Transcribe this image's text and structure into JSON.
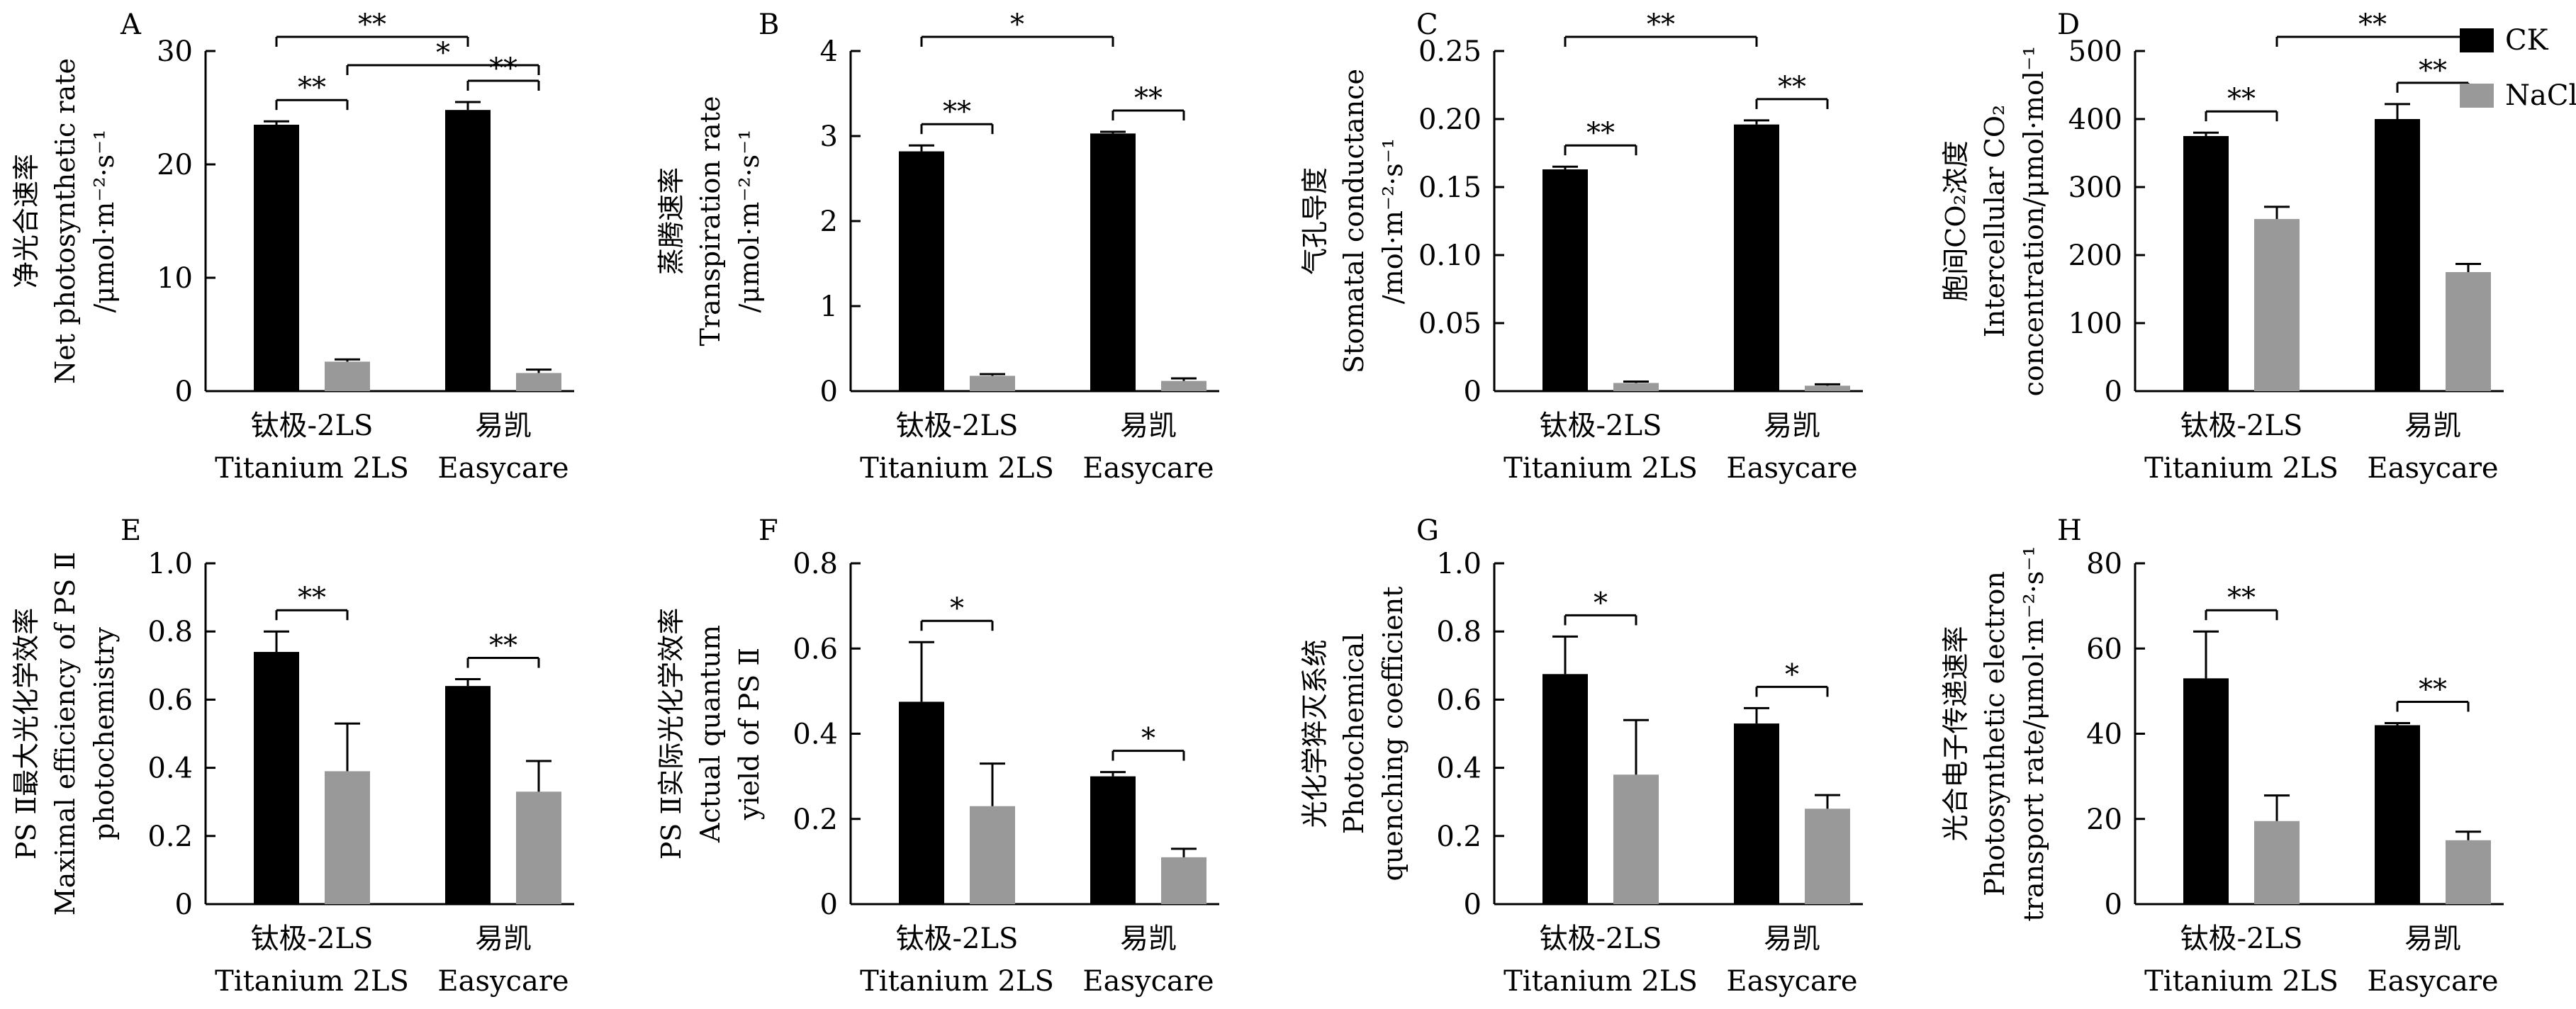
{
  "legend": {
    "position": "top-right",
    "entries": [
      {
        "label": "CK",
        "color": "#000000"
      },
      {
        "label": "NaCl",
        "color": "#999999"
      }
    ]
  },
  "colors": {
    "CK": "#000000",
    "NaCl": "#999999",
    "axis": "#000000"
  },
  "chart_data": [
    {
      "type": "bar",
      "panel": "A",
      "categories": [
        "钛极-2LS",
        "易凯"
      ],
      "categories_en": [
        "Titanium 2LS",
        "Easycare"
      ],
      "ylabel": [
        "净光合速率",
        "Net photosynthetic rate",
        "/μmol·m⁻²·s⁻¹"
      ],
      "ylim": [
        0,
        30
      ],
      "yticks": [
        0,
        10,
        20,
        30
      ],
      "series": [
        {
          "name": "CK",
          "values": [
            23.5,
            24.8
          ],
          "errors": [
            0.3,
            0.7
          ]
        },
        {
          "name": "NaCl",
          "values": [
            2.6,
            1.6
          ],
          "errors": [
            0.2,
            0.3
          ]
        }
      ],
      "annotations": [
        {
          "label": "**",
          "from": [
            0,
            0
          ],
          "to": [
            0,
            1
          ]
        },
        {
          "label": "**",
          "from": [
            1,
            0
          ],
          "to": [
            1,
            1
          ]
        },
        {
          "label": "**",
          "from": [
            0,
            0
          ],
          "to": [
            1,
            0
          ]
        },
        {
          "label": "*",
          "from": [
            0,
            1
          ],
          "to": [
            1,
            1
          ]
        }
      ]
    },
    {
      "type": "bar",
      "panel": "B",
      "categories": [
        "钛极-2LS",
        "易凯"
      ],
      "categories_en": [
        "Titanium 2LS",
        "Easycare"
      ],
      "ylabel": [
        "蒸腾速率",
        "Transpiration rate",
        "/μmol·m⁻²·s⁻¹"
      ],
      "ylim": [
        0,
        4
      ],
      "yticks": [
        0,
        1,
        2,
        3,
        4
      ],
      "series": [
        {
          "name": "CK",
          "values": [
            2.82,
            3.03
          ],
          "errors": [
            0.07,
            0.02
          ]
        },
        {
          "name": "NaCl",
          "values": [
            0.18,
            0.12
          ],
          "errors": [
            0.02,
            0.03
          ]
        }
      ],
      "annotations": [
        {
          "label": "**",
          "from": [
            0,
            0
          ],
          "to": [
            0,
            1
          ]
        },
        {
          "label": "**",
          "from": [
            1,
            0
          ],
          "to": [
            1,
            1
          ]
        },
        {
          "label": "*",
          "from": [
            0,
            0
          ],
          "to": [
            1,
            0
          ]
        }
      ]
    },
    {
      "type": "bar",
      "panel": "C",
      "categories": [
        "钛极-2LS",
        "易凯"
      ],
      "categories_en": [
        "Titanium 2LS",
        "Easycare"
      ],
      "ylabel": [
        "气孔导度",
        "Stomatal conductance",
        "/mol·m⁻²·s⁻¹"
      ],
      "ylim": [
        0,
        0.25
      ],
      "yticks": [
        0,
        0.05,
        0.1,
        0.15,
        0.2,
        0.25
      ],
      "series": [
        {
          "name": "CK",
          "values": [
            0.163,
            0.196
          ],
          "errors": [
            0.002,
            0.003
          ]
        },
        {
          "name": "NaCl",
          "values": [
            0.006,
            0.004
          ],
          "errors": [
            0.001,
            0.001
          ]
        }
      ],
      "annotations": [
        {
          "label": "**",
          "from": [
            0,
            0
          ],
          "to": [
            0,
            1
          ]
        },
        {
          "label": "**",
          "from": [
            1,
            0
          ],
          "to": [
            1,
            1
          ]
        },
        {
          "label": "**",
          "from": [
            0,
            0
          ],
          "to": [
            1,
            0
          ]
        }
      ]
    },
    {
      "type": "bar",
      "panel": "D",
      "categories": [
        "钛极-2LS",
        "易凯"
      ],
      "categories_en": [
        "Titanium 2LS",
        "Easycare"
      ],
      "ylabel": [
        "胞间CO₂浓度",
        "Intercellular CO₂",
        "concentration/μmol·mol⁻¹"
      ],
      "ylim": [
        0,
        500
      ],
      "yticks": [
        0,
        100,
        200,
        300,
        400,
        500
      ],
      "series": [
        {
          "name": "CK",
          "values": [
            375,
            400
          ],
          "errors": [
            5,
            22
          ]
        },
        {
          "name": "NaCl",
          "values": [
            253,
            175
          ],
          "errors": [
            18,
            12
          ]
        }
      ],
      "annotations": [
        {
          "label": "**",
          "from": [
            0,
            0
          ],
          "to": [
            0,
            1
          ]
        },
        {
          "label": "**",
          "from": [
            1,
            0
          ],
          "to": [
            1,
            1
          ]
        },
        {
          "label": "**",
          "from": [
            0,
            1
          ],
          "to": [
            1,
            1
          ]
        }
      ]
    },
    {
      "type": "bar",
      "panel": "E",
      "categories": [
        "钛极-2LS",
        "易凯"
      ],
      "categories_en": [
        "Titanium 2LS",
        "Easycare"
      ],
      "ylabel": [
        "PS Ⅱ最大光化学效率",
        "Maximal efficiency of PS Ⅱ",
        "photochemistry"
      ],
      "ylim": [
        0,
        1.0
      ],
      "yticks": [
        0,
        0.2,
        0.4,
        0.6,
        0.8,
        1.0
      ],
      "series": [
        {
          "name": "CK",
          "values": [
            0.74,
            0.64
          ],
          "errors": [
            0.06,
            0.02
          ]
        },
        {
          "name": "NaCl",
          "values": [
            0.39,
            0.33
          ],
          "errors": [
            0.14,
            0.09
          ]
        }
      ],
      "annotations": [
        {
          "label": "**",
          "from": [
            0,
            0
          ],
          "to": [
            0,
            1
          ]
        },
        {
          "label": "**",
          "from": [
            1,
            0
          ],
          "to": [
            1,
            1
          ]
        }
      ]
    },
    {
      "type": "bar",
      "panel": "F",
      "categories": [
        "钛极-2LS",
        "易凯"
      ],
      "categories_en": [
        "Titanium 2LS",
        "Easycare"
      ],
      "ylabel": [
        "PS Ⅱ实际光化学效率",
        "Actual quantum",
        "yield of PS Ⅱ"
      ],
      "ylim": [
        0,
        0.8
      ],
      "yticks": [
        0,
        0.2,
        0.4,
        0.6,
        0.8
      ],
      "series": [
        {
          "name": "CK",
          "values": [
            0.475,
            0.3
          ],
          "errors": [
            0.14,
            0.01
          ]
        },
        {
          "name": "NaCl",
          "values": [
            0.23,
            0.11
          ],
          "errors": [
            0.1,
            0.02
          ]
        }
      ],
      "annotations": [
        {
          "label": "*",
          "from": [
            0,
            0
          ],
          "to": [
            0,
            1
          ]
        },
        {
          "label": "*",
          "from": [
            1,
            0
          ],
          "to": [
            1,
            1
          ]
        }
      ]
    },
    {
      "type": "bar",
      "panel": "G",
      "categories": [
        "钛极-2LS",
        "易凯"
      ],
      "categories_en": [
        "Titanium 2LS",
        "Easycare"
      ],
      "ylabel": [
        "光化学猝灭系统",
        "Photochemical",
        "quenching coefficient"
      ],
      "ylim": [
        0,
        1.0
      ],
      "yticks": [
        0,
        0.2,
        0.4,
        0.6,
        0.8,
        1.0
      ],
      "series": [
        {
          "name": "CK",
          "values": [
            0.675,
            0.53
          ],
          "errors": [
            0.11,
            0.045
          ]
        },
        {
          "name": "NaCl",
          "values": [
            0.38,
            0.28
          ],
          "errors": [
            0.16,
            0.04
          ]
        }
      ],
      "annotations": [
        {
          "label": "*",
          "from": [
            0,
            0
          ],
          "to": [
            0,
            1
          ]
        },
        {
          "label": "*",
          "from": [
            1,
            0
          ],
          "to": [
            1,
            1
          ]
        }
      ]
    },
    {
      "type": "bar",
      "panel": "H",
      "categories": [
        "钛极-2LS",
        "易凯"
      ],
      "categories_en": [
        "Titanium 2LS",
        "Easycare"
      ],
      "ylabel": [
        "光合电子传递速率",
        "Photosynthetic electron",
        "transport rate/μmol·m⁻²·s⁻¹"
      ],
      "ylim": [
        0,
        80
      ],
      "yticks": [
        0,
        20,
        40,
        60,
        80
      ],
      "series": [
        {
          "name": "CK",
          "values": [
            53,
            42
          ],
          "errors": [
            11,
            0.5
          ]
        },
        {
          "name": "NaCl",
          "values": [
            19.5,
            15
          ],
          "errors": [
            6,
            2
          ]
        }
      ],
      "annotations": [
        {
          "label": "**",
          "from": [
            0,
            0
          ],
          "to": [
            0,
            1
          ]
        },
        {
          "label": "**",
          "from": [
            1,
            0
          ],
          "to": [
            1,
            1
          ]
        }
      ]
    }
  ]
}
